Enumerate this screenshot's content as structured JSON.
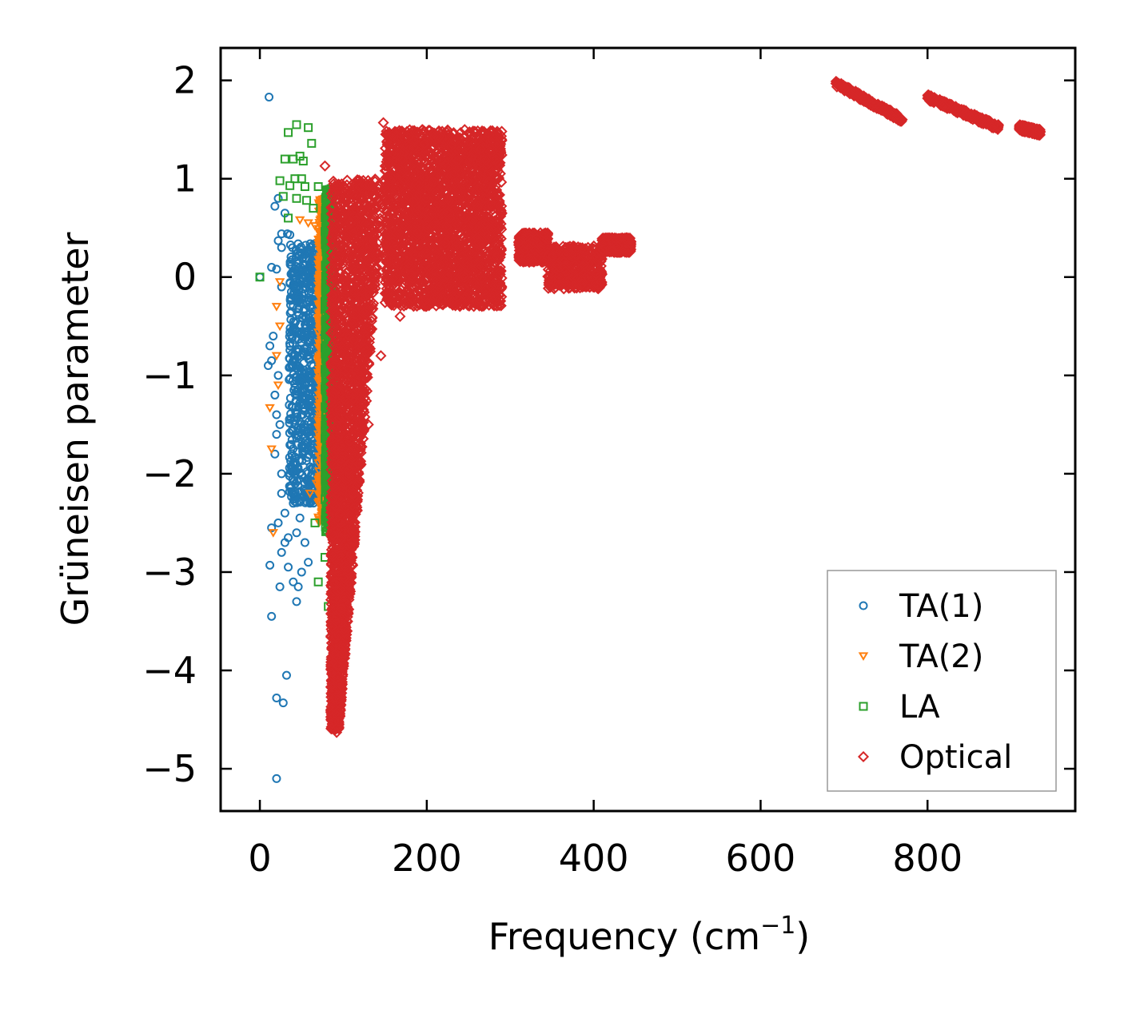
{
  "chart_data": {
    "type": "scatter",
    "title": "",
    "xlabel": "Frequency (cm",
    "xlabel_sup": "−1",
    "xlabel_close": ")",
    "ylabel": "Grüneisen parameter",
    "xlim": [
      -47,
      977
    ],
    "ylim": [
      -5.43,
      2.33
    ],
    "xticks": [
      0,
      200,
      400,
      600,
      800
    ],
    "xtick_labels": [
      "0",
      "200",
      "400",
      "600",
      "800"
    ],
    "yticks": [
      2,
      1,
      0,
      -1,
      -2,
      -3,
      -4,
      -5
    ],
    "ytick_labels": [
      "2",
      "1",
      "0",
      "−1",
      "−2",
      "−3",
      "−4",
      "−5"
    ],
    "grid": false,
    "legend_position": "lower-right",
    "series": [
      {
        "name": "TA(1)",
        "marker": "circle",
        "color": "#1f77b4",
        "points": [
          [
            11,
            1.83
          ],
          [
            22,
            0.8
          ],
          [
            18,
            0.72
          ],
          [
            30,
            0.65
          ],
          [
            26,
            0.44
          ],
          [
            33,
            0.44
          ],
          [
            36,
            0.43
          ],
          [
            22,
            0.37
          ],
          [
            26,
            0.3
          ],
          [
            14,
            0.1
          ],
          [
            20,
            0.08
          ],
          [
            0,
            0
          ],
          [
            26,
            -0.1
          ],
          [
            16,
            -0.6
          ],
          [
            12,
            -0.7
          ],
          [
            14,
            -0.85
          ],
          [
            10,
            -0.9
          ],
          [
            22,
            -1.0
          ],
          [
            18,
            -1.2
          ],
          [
            20,
            -1.4
          ],
          [
            24,
            -1.5
          ],
          [
            20,
            -1.6
          ],
          [
            18,
            -1.8
          ],
          [
            26,
            -2.0
          ],
          [
            26,
            -2.2
          ],
          [
            40,
            -2.3
          ],
          [
            30,
            -2.4
          ],
          [
            22,
            -2.5
          ],
          [
            14,
            -2.55
          ],
          [
            34,
            -2.65
          ],
          [
            30,
            -2.7
          ],
          [
            26,
            -2.8
          ],
          [
            12,
            -2.93
          ],
          [
            34,
            -2.95
          ],
          [
            24,
            -3.15
          ],
          [
            40,
            -3.1
          ],
          [
            46,
            -3.15
          ],
          [
            44,
            -3.3
          ],
          [
            14,
            -3.45
          ],
          [
            32,
            -4.05
          ],
          [
            20,
            -4.28
          ],
          [
            28,
            -4.33
          ],
          [
            20,
            -5.1
          ],
          [
            44,
            -2.6
          ],
          [
            54,
            -2.7
          ],
          [
            58,
            -2.9
          ],
          [
            50,
            -3.0
          ],
          [
            48,
            -2.45
          ],
          [
            60,
            -2.3
          ]
        ],
        "dense_band": {
          "x_range": [
            35,
            75
          ],
          "y_range": [
            -2.3,
            0.35
          ]
        }
      },
      {
        "name": "TA(2)",
        "marker": "triangle-down",
        "color": "#ff7f0e",
        "points": [
          [
            48,
            0.58
          ],
          [
            58,
            0.55
          ],
          [
            66,
            0.52
          ],
          [
            76,
            0.45
          ],
          [
            74,
            0.4
          ],
          [
            24,
            -0.05
          ],
          [
            20,
            -0.3
          ],
          [
            24,
            -0.5
          ],
          [
            20,
            -0.8
          ],
          [
            22,
            -1.1
          ],
          [
            12,
            -1.33
          ],
          [
            14,
            -1.75
          ],
          [
            16,
            -2.6
          ],
          [
            60,
            -2.2
          ],
          [
            68,
            -2.1
          ]
        ],
        "dense_band": {
          "x_range": [
            70,
            82
          ],
          "y_range": [
            -2.5,
            0.8
          ]
        }
      },
      {
        "name": "LA",
        "marker": "square",
        "color": "#2ca02c",
        "points": [
          [
            0,
            0
          ],
          [
            34,
            1.47
          ],
          [
            44,
            1.55
          ],
          [
            58,
            1.52
          ],
          [
            62,
            1.36
          ],
          [
            30,
            1.2
          ],
          [
            40,
            1.2
          ],
          [
            48,
            1.23
          ],
          [
            52,
            1.18
          ],
          [
            24,
            0.98
          ],
          [
            36,
            0.93
          ],
          [
            42,
            1.0
          ],
          [
            50,
            1.0
          ],
          [
            54,
            0.92
          ],
          [
            28,
            0.82
          ],
          [
            44,
            0.8
          ],
          [
            56,
            0.78
          ],
          [
            34,
            0.6
          ],
          [
            64,
            0.7
          ],
          [
            70,
            0.92
          ],
          [
            82,
            -3.35
          ],
          [
            70,
            -3.1
          ],
          [
            78,
            -2.85
          ],
          [
            84,
            -2.4
          ],
          [
            66,
            -2.5
          ]
        ],
        "dense_band": {
          "x_range": [
            78,
            88
          ],
          "y_range": [
            -2.6,
            0.9
          ]
        }
      },
      {
        "name": "Optical",
        "marker": "diamond",
        "color": "#d62728",
        "points": [
          [
            92,
            -4.63
          ],
          [
            148,
            1.57
          ],
          [
            186,
            1.47
          ],
          [
            78,
            1.13
          ],
          [
            96,
            0.9
          ],
          [
            188,
            -0.1
          ],
          [
            168,
            -0.4
          ],
          [
            145,
            -0.8
          ],
          [
            130,
            -1.5
          ],
          [
            112,
            -2.2
          ]
        ],
        "dense_regions": [
          {
            "x_range": [
              85,
              150
            ],
            "y_range": [
              -4.6,
              1.0
            ]
          },
          {
            "x_range": [
              150,
              290
            ],
            "y_range": [
              -0.3,
              1.5
            ]
          },
          {
            "x_range": [
              310,
              345
            ],
            "y_range": [
              0.15,
              0.45
            ]
          },
          {
            "x_range": [
              345,
              410
            ],
            "y_range": [
              -0.12,
              0.32
            ]
          },
          {
            "x_range": [
              410,
              445
            ],
            "y_range": [
              0.25,
              0.4
            ]
          }
        ],
        "bands": [
          {
            "x_start": 690,
            "y_start": 1.97,
            "x_end": 770,
            "y_end": 1.6
          },
          {
            "x_start": 800,
            "y_start": 1.83,
            "x_end": 885,
            "y_end": 1.52
          },
          {
            "x_start": 910,
            "y_start": 1.52,
            "x_end": 935,
            "y_end": 1.47
          }
        ]
      }
    ]
  }
}
